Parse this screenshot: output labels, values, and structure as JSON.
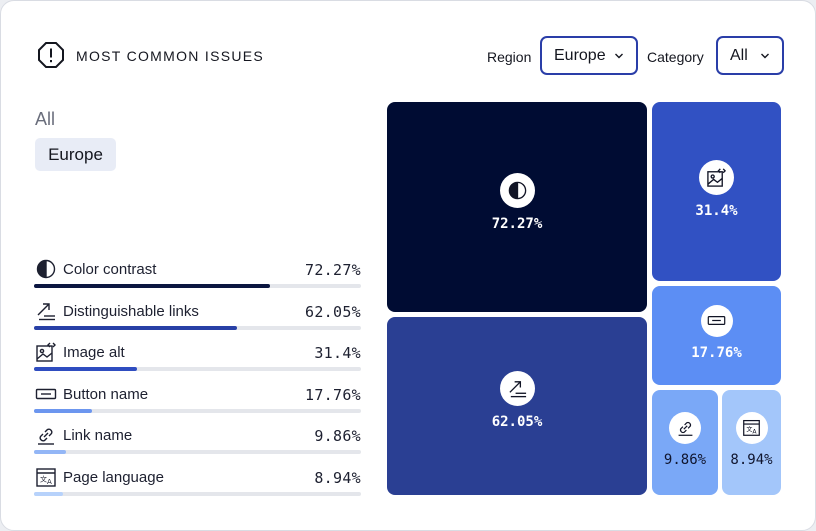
{
  "header": {
    "title": "MOST COMMON ISSUES",
    "title_icon": "warning-octagon-icon",
    "region_label": "Region",
    "region_value": "Europe",
    "category_label": "Category",
    "category_value": "All"
  },
  "breadcrumb": {
    "root": "All",
    "current": "Europe"
  },
  "colors": {
    "tile_darkest": "#000c33",
    "tile_dark": "#2a3f93",
    "tile_medium": "#3151c3",
    "tile_light": "#5c8ef4",
    "tile_lighter": "#7aa8f7",
    "tile_lightest": "#a3c6fa"
  },
  "chart_data": {
    "type": "treemap",
    "title": "MOST COMMON ISSUES",
    "unit": "%",
    "items": [
      {
        "name": "Color contrast",
        "value": 72.27,
        "label": "72.27%",
        "icon": "contrast-icon"
      },
      {
        "name": "Distinguishable links",
        "value": 62.05,
        "label": "62.05%",
        "icon": "link-arrow-icon"
      },
      {
        "name": "Image alt",
        "value": 31.4,
        "label": "31.4%",
        "icon": "image-code-icon"
      },
      {
        "name": "Button name",
        "value": 17.76,
        "label": "17.76%",
        "icon": "button-icon"
      },
      {
        "name": "Link name",
        "value": 9.86,
        "label": "9.86%",
        "icon": "link-icon"
      },
      {
        "name": "Page language",
        "value": 8.94,
        "label": "8.94%",
        "icon": "translate-icon"
      }
    ]
  }
}
